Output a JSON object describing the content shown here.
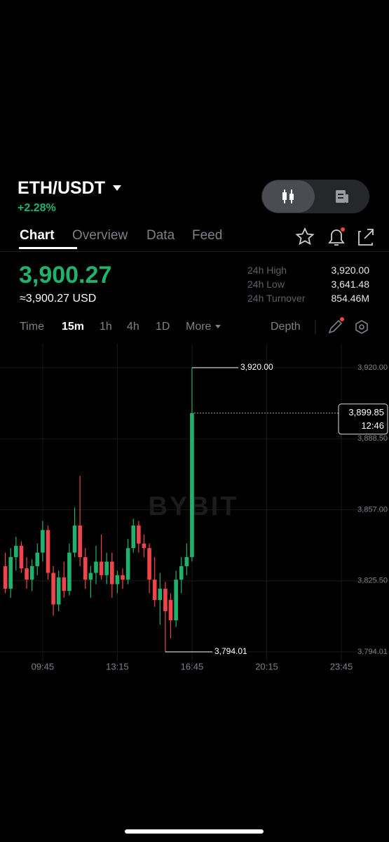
{
  "header": {
    "pair": "ETH/USDT",
    "change": "+2.28%"
  },
  "tabs": [
    "Chart",
    "Overview",
    "Data",
    "Feed"
  ],
  "price": {
    "last": "3,900.27",
    "usd": "≈3,900.27 USD"
  },
  "stats": [
    [
      "24h High",
      "3,920.00"
    ],
    [
      "24h Low",
      "3,641.48"
    ],
    [
      "24h Turnover",
      "854.46M"
    ]
  ],
  "timeframes": [
    "Time",
    "15m",
    "1h",
    "4h",
    "1D",
    "More"
  ],
  "depth": "Depth",
  "chart_data": {
    "type": "candlestick",
    "watermark": "BYBIT",
    "up_color": "#20b26c",
    "down_color": "#ef454a",
    "x": [
      480,
      495,
      510,
      525,
      540,
      555,
      570,
      585,
      600,
      615,
      630,
      645,
      660,
      675,
      690,
      705,
      720,
      735,
      750,
      765,
      780,
      795,
      810,
      825,
      840,
      855,
      870,
      885,
      900,
      915,
      930,
      945,
      960,
      975,
      990,
      1005
    ],
    "open": [
      3832,
      3822,
      3836,
      3841,
      3831,
      3826,
      3832,
      3838,
      3848,
      3829,
      3815,
      3827,
      3821,
      3838,
      3850,
      3836,
      3826,
      3829,
      3834,
      3828,
      3834,
      3824,
      3828,
      3826,
      3840,
      3850,
      3842,
      3840,
      3826,
      3817,
      3822,
      3817,
      3808,
      3826,
      3832,
      3836
    ],
    "high": [
      3838,
      3840,
      3845,
      3843,
      3836,
      3835,
      3842,
      3852,
      3850,
      3832,
      3830,
      3834,
      3842,
      3858,
      3872,
      3840,
      3832,
      3841,
      3846,
      3838,
      3838,
      3830,
      3831,
      3844,
      3853,
      3852,
      3846,
      3842,
      3836,
      3829,
      3825,
      3820,
      3830,
      3836,
      3842,
      3920
    ],
    "low": [
      3820,
      3818,
      3830,
      3829,
      3822,
      3821,
      3828,
      3834,
      3826,
      3810,
      3812,
      3818,
      3819,
      3836,
      3832,
      3822,
      3818,
      3824,
      3826,
      3824,
      3818,
      3820,
      3822,
      3824,
      3838,
      3838,
      3836,
      3820,
      3814,
      3806,
      3794.01,
      3800,
      3805,
      3820,
      3828,
      3834
    ],
    "close": [
      3822,
      3836,
      3841,
      3831,
      3826,
      3832,
      3838,
      3848,
      3829,
      3815,
      3827,
      3821,
      3838,
      3850,
      3836,
      3826,
      3829,
      3834,
      3828,
      3834,
      3824,
      3828,
      3826,
      3840,
      3850,
      3842,
      3840,
      3826,
      3817,
      3822,
      3812,
      3808,
      3826,
      3832,
      3836,
      3899.85
    ],
    "xlim": [
      465,
      1559
    ],
    "xticks": [
      {
        "value": 585,
        "label": "09:45"
      },
      {
        "value": 795,
        "label": "13:15"
      },
      {
        "value": 1005,
        "label": "16:45"
      },
      {
        "value": 1215,
        "label": "20:15"
      },
      {
        "value": 1425,
        "label": "23:45"
      }
    ],
    "ylim": [
      3790,
      3930
    ],
    "yticks": [
      {
        "value": 3920,
        "label": "3,920.00"
      },
      {
        "value": 3888.5,
        "label": "3,888.50"
      },
      {
        "value": 3857,
        "label": "3,857.00"
      },
      {
        "value": 3825.5,
        "label": "3,825.50"
      },
      {
        "value": 3794.01,
        "label": "3,794.01"
      }
    ],
    "high_marker": {
      "value": 3920,
      "label": "3,920.00"
    },
    "low_marker": {
      "value": 3794.01,
      "label": "3,794.01"
    },
    "last_price": {
      "value": 3899.85,
      "label": "3,899.85"
    },
    "countdown": "12:46",
    "grid": true
  }
}
